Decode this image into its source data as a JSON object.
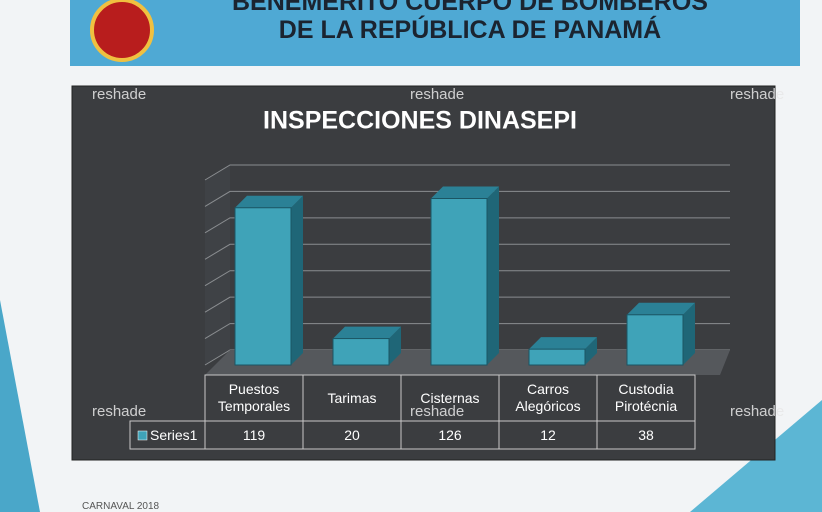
{
  "header": {
    "line1": "BENEMÉRITO CUERPO DE BOMBEROS",
    "line2": "DE LA REPÚBLICA DE PANAMÁ"
  },
  "watermark": "reshade",
  "footer": "CARNAVAL 2018",
  "chart_data": {
    "type": "bar3d",
    "title": "INSPECCIONES DINASEPI",
    "categories": [
      "Puestos Temporales",
      "Tarimas",
      "Cisternas",
      "Carros Alegóricos",
      "Custodia Pirotécnia"
    ],
    "series": [
      {
        "name": "Series1",
        "color": "#3fa3b8",
        "values": [
          119,
          20,
          126,
          12,
          38
        ]
      }
    ],
    "ylim": [
      0,
      140
    ],
    "yticks": [
      0,
      20,
      40,
      60,
      80,
      100,
      120,
      140
    ],
    "grid": true
  }
}
